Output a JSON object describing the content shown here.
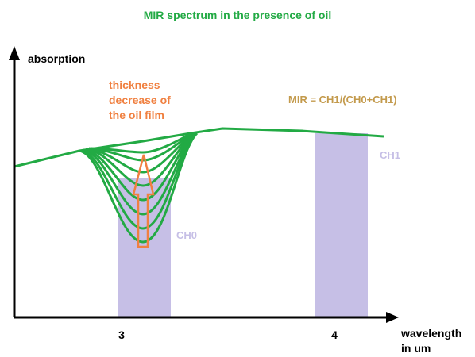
{
  "title": "MIR spectrum in the presence of oil",
  "y_axis_label": "absorption",
  "x_axis_label": [
    "wavelength",
    "in um"
  ],
  "x_ticks": [
    "3",
    "4"
  ],
  "annotation": [
    "thickness",
    "decrease of",
    "the oil film"
  ],
  "formula": "MIR = CH1/(CH0+CH1)",
  "channels": [
    "CH0",
    "CH1"
  ]
}
